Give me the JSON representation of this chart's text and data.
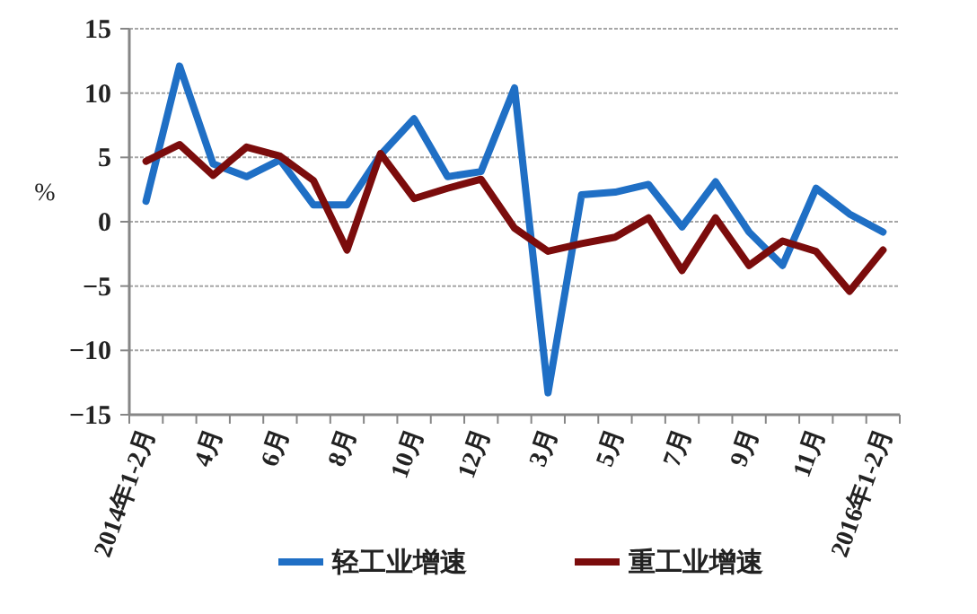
{
  "chart_data": {
    "type": "line",
    "ylabel": "%",
    "categories": [
      "2014年1-2月",
      null,
      "4月",
      null,
      "6月",
      null,
      "8月",
      null,
      "10月",
      null,
      "12月",
      null,
      "3月",
      null,
      "5月",
      null,
      "7月",
      null,
      "9月",
      null,
      "11月",
      null,
      "2016年1-2月"
    ],
    "series": [
      {
        "name": "轻工业增速",
        "color": "#1f6fc5",
        "values": [
          1.6,
          12.1,
          4.5,
          3.5,
          4.8,
          1.3,
          1.3,
          5.2,
          8.0,
          3.5,
          3.9,
          10.4,
          -13.3,
          2.1,
          2.3,
          2.9,
          -0.4,
          3.1,
          -0.8,
          -3.4,
          2.6,
          0.6,
          -0.8
        ]
      },
      {
        "name": "重工业增速",
        "color": "#7b0c0c",
        "values": [
          4.7,
          6.0,
          3.6,
          5.8,
          5.1,
          3.2,
          -2.2,
          5.3,
          1.8,
          2.6,
          3.3,
          -0.5,
          -2.3,
          -1.7,
          -1.2,
          0.3,
          -3.8,
          0.3,
          -3.4,
          -1.5,
          -2.3,
          -5.4,
          -2.2
        ]
      }
    ],
    "ylim": [
      -15,
      15
    ],
    "yticks": [
      15,
      10,
      5,
      0,
      {
        "value": -5,
        "label": "−5"
      },
      {
        "value": -10,
        "label": "−10"
      },
      {
        "value": -15,
        "label": "−15"
      }
    ],
    "grid": "y",
    "legend": "bottom",
    "line_style": "solid"
  }
}
